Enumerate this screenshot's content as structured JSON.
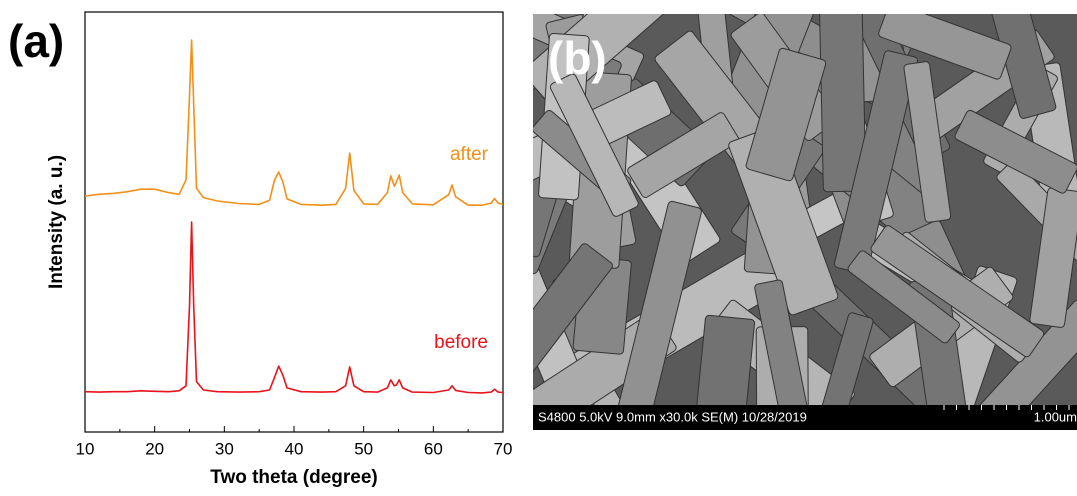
{
  "chart_data": {
    "type": "line",
    "panel_label": "(a)",
    "x_label": "Two theta (degree)",
    "y_label": "Intensity (a. u.)",
    "x": [
      10,
      12,
      14,
      16,
      18,
      20,
      22,
      23.5,
      24.5,
      25,
      25.3,
      25.6,
      26,
      27,
      29,
      32,
      35,
      36.5,
      37.2,
      37.8,
      38.4,
      39,
      41,
      44,
      46,
      47.4,
      48,
      48.6,
      50,
      52,
      53.4,
      53.9,
      54.4,
      54.7,
      55.1,
      55.6,
      57,
      60,
      62.2,
      62.7,
      63.2,
      65,
      67,
      68.3,
      68.8,
      69.3,
      70
    ],
    "series": [
      {
        "name": "after",
        "color": "#f39019",
        "values": [
          56.2,
          56.6,
          56.8,
          57.2,
          57.8,
          57.8,
          57,
          56.6,
          60,
          80,
          93.3,
          78,
          58,
          55.8,
          55,
          54.4,
          54.2,
          55.2,
          60,
          61.9,
          59.5,
          55.5,
          54.2,
          54,
          54.2,
          58,
          66.4,
          57.5,
          54.3,
          54.2,
          57,
          61,
          58.5,
          59.5,
          61.2,
          57,
          54.3,
          54.1,
          56.5,
          58.8,
          56,
          54,
          54,
          54.5,
          55.6,
          54.5,
          54.2
        ]
      },
      {
        "name": "before",
        "color": "#e8141b",
        "values": [
          9.6,
          9.5,
          9.6,
          9.6,
          9.8,
          9.7,
          9.6,
          9.8,
          11,
          30,
          50,
          30,
          12,
          10,
          9.6,
          9.5,
          9.6,
          10,
          13,
          15.7,
          13.5,
          10.5,
          9.6,
          9.5,
          9.6,
          11,
          15.5,
          11,
          9.6,
          9.5,
          10.5,
          12.4,
          11,
          11.2,
          12.4,
          10.5,
          9.5,
          9.4,
          10,
          11,
          9.9,
          9.4,
          9.3,
          9.5,
          10.2,
          9.5,
          9.4
        ]
      }
    ],
    "xlim": [
      10,
      70
    ],
    "xticks": [
      10,
      20,
      30,
      40,
      50,
      60,
      70
    ],
    "ylim": [
      0,
      100
    ]
  },
  "image": {
    "panel_label": "(b)",
    "caption": "S4800 5.0kV 9.0mm x30.0k SE(M) 10/28/2019",
    "scale_label": "1.00um"
  }
}
